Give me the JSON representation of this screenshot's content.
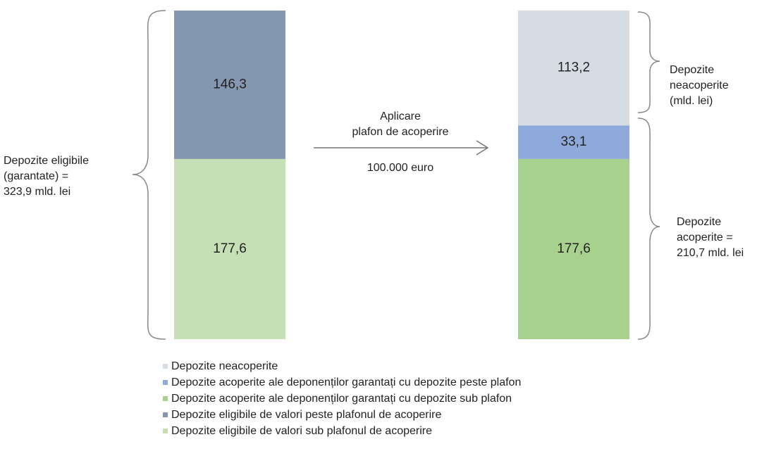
{
  "chart_data": {
    "type": "stacked-bar",
    "categories": [
      null,
      null
    ],
    "series": [
      {
        "name": "Depozite neacoperite",
        "color": "#d6dce4",
        "values": [
          null,
          113.2
        ],
        "value_labels": [
          null,
          "113,2"
        ]
      },
      {
        "name": "Depozite acoperite ale deponenților garantați cu depozite peste plafon",
        "color": "#8eaadb",
        "values": [
          null,
          33.1
        ],
        "value_labels": [
          null,
          "33,1"
        ]
      },
      {
        "name": "Depozite acoperite ale deponenților garantați cu depozite sub plafon",
        "color": "#a9d18e",
        "values": [
          null,
          177.6
        ],
        "value_labels": [
          null,
          "177,6"
        ]
      },
      {
        "name": "Depozite eligibile de valori peste plafonul de acoperire",
        "color": "#8497b0",
        "values": [
          146.3,
          null
        ],
        "value_labels": [
          "146,3",
          null
        ]
      },
      {
        "name": "Depozite eligibile de valori sub plafonul de acoperire",
        "color": "#c5e0b4",
        "values": [
          177.6,
          null
        ],
        "value_labels": [
          "177,6",
          null
        ]
      }
    ],
    "annotations": [
      {
        "lines": [
          "Depozite eligibile",
          "(garantate) =",
          "323,9 mld. lei"
        ]
      },
      {
        "lines": [
          "Aplicare",
          "plafon de acoperire"
        ]
      },
      {
        "lines": [
          "100.000 euro"
        ]
      },
      {
        "lines": [
          "Depozite",
          "neacoperite",
          "(mld. lei)"
        ]
      },
      {
        "lines": [
          "Depozite",
          "acoperite =",
          "210,7 mld. lei"
        ]
      }
    ]
  }
}
